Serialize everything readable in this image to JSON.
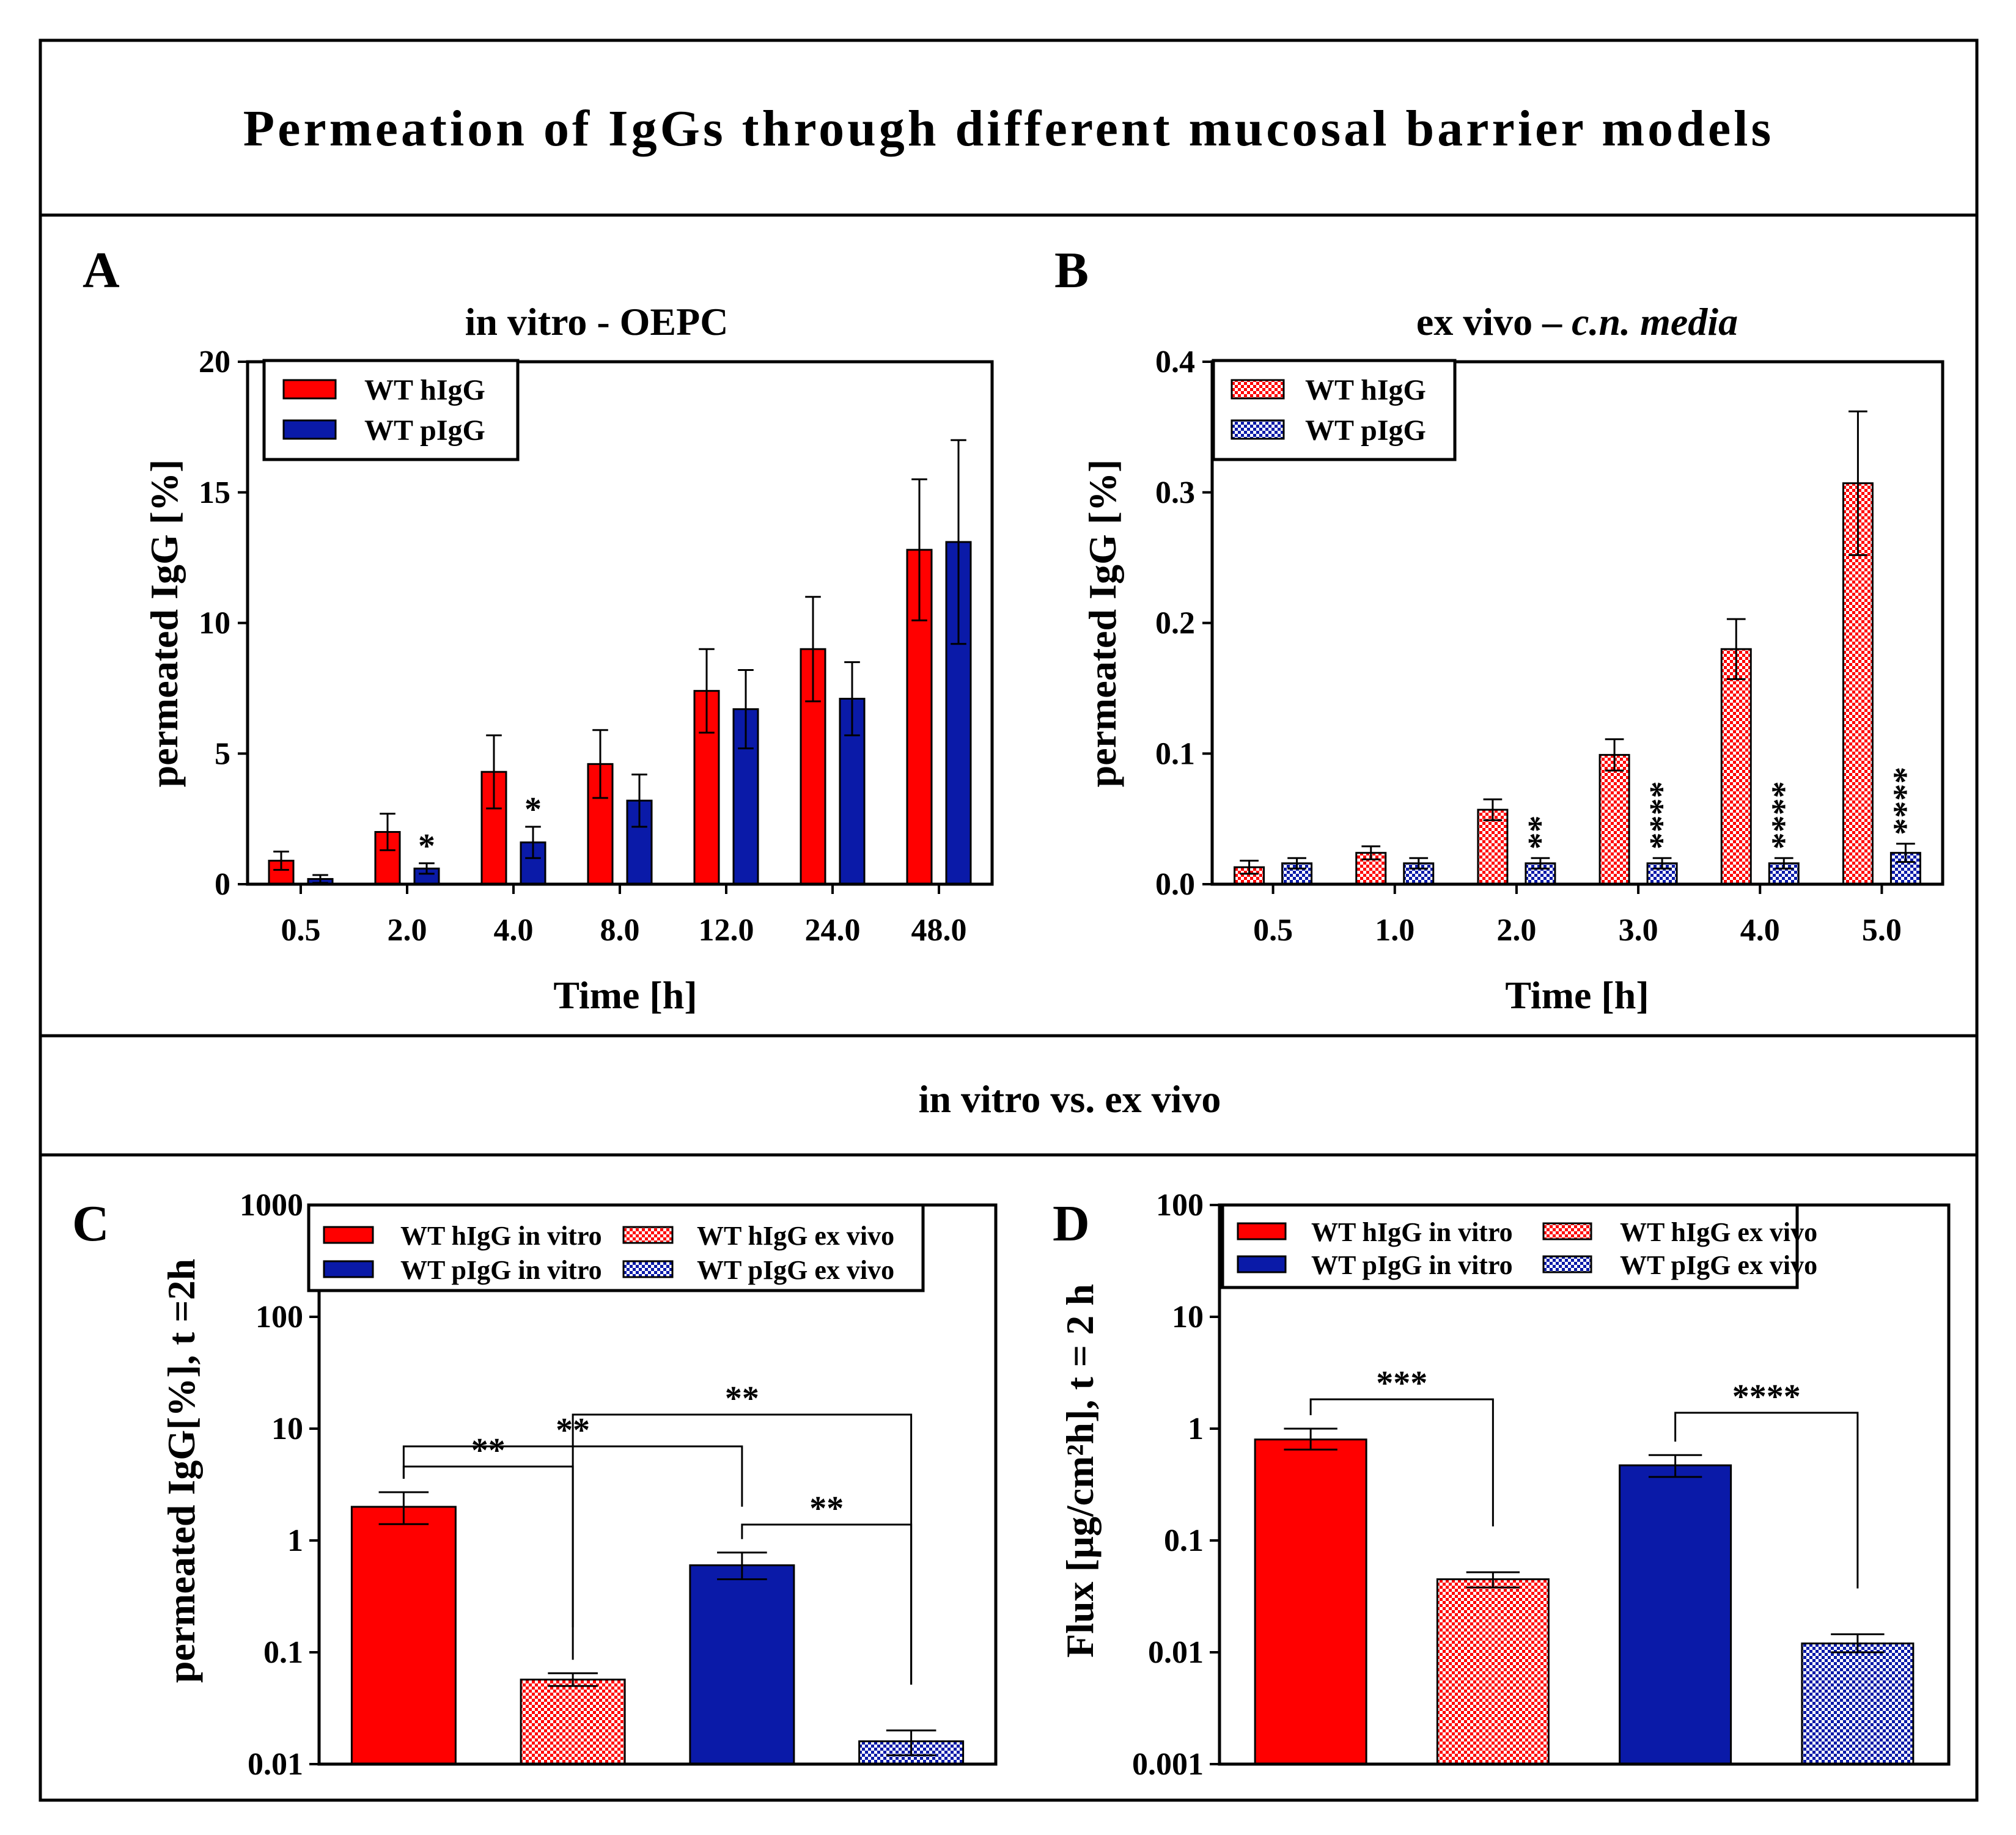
{
  "figure_title": "Permeation of IgGs through different mucosal barrier models",
  "section_title": "in vitro vs. ex vivo",
  "colors": {
    "red": "#ff0000",
    "blue": "#0a1aa8",
    "black": "#000000"
  },
  "chart_data": [
    {
      "panel": "A",
      "type": "bar",
      "title": "in vitro - OEPC",
      "xlabel": "Time [h]",
      "ylabel": "permeated IgG [%]",
      "ylim": [
        0,
        20
      ],
      "yticks": [
        "0",
        "5",
        "10",
        "15",
        "20"
      ],
      "categories": [
        "0.5",
        "2.0",
        "4.0",
        "8.0",
        "12.0",
        "24.0",
        "48.0"
      ],
      "legend": {
        "position": "top-left",
        "entries": [
          "WT hIgG",
          "WT pIgG"
        ]
      },
      "series": [
        {
          "name": "WT hIgG",
          "pattern": "solid",
          "color": "#ff0000",
          "values": [
            0.9,
            2.0,
            4.3,
            4.6,
            7.4,
            9.0,
            12.8
          ],
          "errors": [
            0.35,
            0.7,
            1.4,
            1.3,
            1.6,
            2.0,
            2.7
          ]
        },
        {
          "name": "WT pIgG",
          "pattern": "solid",
          "color": "#0a1aa8",
          "values": [
            0.2,
            0.6,
            1.6,
            3.2,
            6.7,
            7.1,
            13.1
          ],
          "errors": [
            0.15,
            0.2,
            0.6,
            1.0,
            1.5,
            1.4,
            3.9
          ],
          "significance": [
            "",
            "*",
            "*",
            "",
            "",
            "",
            ""
          ]
        }
      ]
    },
    {
      "panel": "B",
      "type": "bar",
      "title_plain": "ex vivo – ",
      "title_italic": "c.n. media",
      "xlabel": "Time [h]",
      "ylabel": "permeated IgG [%]",
      "ylim": [
        0,
        0.4
      ],
      "yticks": [
        "0.0",
        "0.1",
        "0.2",
        "0.3",
        "0.4"
      ],
      "categories": [
        "0.5",
        "1.0",
        "2.0",
        "3.0",
        "4.0",
        "5.0"
      ],
      "legend": {
        "position": "top-left",
        "entries": [
          "WT hIgG",
          "WT pIgG"
        ]
      },
      "series": [
        {
          "name": "WT hIgG",
          "pattern": "checkered",
          "color": "#ff0000",
          "values": [
            0.013,
            0.024,
            0.057,
            0.099,
            0.18,
            0.307
          ],
          "errors": [
            0.005,
            0.005,
            0.008,
            0.012,
            0.023,
            0.055
          ]
        },
        {
          "name": "WT pIgG",
          "pattern": "checkered",
          "color": "#0a1aa8",
          "values": [
            0.016,
            0.016,
            0.016,
            0.016,
            0.016,
            0.024
          ],
          "errors": [
            0.004,
            0.004,
            0.004,
            0.004,
            0.004,
            0.007
          ],
          "significance": [
            "",
            "",
            "**",
            "****",
            "****",
            "****"
          ]
        }
      ]
    },
    {
      "panel": "C",
      "type": "bar",
      "scale": "log",
      "ylabel": "permeated IgG[%], t =2h",
      "ylim": [
        0.01,
        1000
      ],
      "yticks": [
        "0.01",
        "0.1",
        "1",
        "10",
        "100",
        "1000"
      ],
      "legend": {
        "position": "top",
        "entries": [
          "WT hIgG in vitro",
          "WT hIgG ex vivo",
          "WT pIgG in vitro",
          "WT pIgG ex vivo"
        ]
      },
      "bars": [
        {
          "name": "WT hIgG in vitro",
          "pattern": "solid",
          "color": "#ff0000",
          "value": 2.0,
          "err_low": 1.4,
          "err_high": 2.7
        },
        {
          "name": "WT hIgG ex vivo",
          "pattern": "checkered",
          "color": "#ff0000",
          "value": 0.057,
          "err_low": 0.05,
          "err_high": 0.065
        },
        {
          "name": "WT pIgG in vitro",
          "pattern": "solid",
          "color": "#0a1aa8",
          "value": 0.6,
          "err_low": 0.45,
          "err_high": 0.78
        },
        {
          "name": "WT pIgG ex vivo",
          "pattern": "checkered",
          "color": "#0a1aa8",
          "value": 0.016,
          "err_low": 0.012,
          "err_high": 0.02
        }
      ],
      "comparisons": [
        {
          "from": 0,
          "to": 1,
          "label": "**"
        },
        {
          "from": 0,
          "to": 2,
          "label": "**"
        },
        {
          "from": 1,
          "to": 3,
          "label": "**"
        },
        {
          "from": 2,
          "to": 3,
          "label": "**"
        }
      ]
    },
    {
      "panel": "D",
      "type": "bar",
      "scale": "log",
      "ylabel": "Flux [µg/cm²h], t = 2 h",
      "ylim": [
        0.001,
        100
      ],
      "yticks": [
        "0.001",
        "0.01",
        "0.1",
        "1",
        "10",
        "100"
      ],
      "legend": {
        "position": "top",
        "entries": [
          "WT hIgG in vitro",
          "WT hIgG ex vivo",
          "WT pIgG in vitro",
          "WT pIgG ex vivo"
        ]
      },
      "bars": [
        {
          "name": "WT hIgG in vitro",
          "pattern": "solid",
          "color": "#ff0000",
          "value": 0.8,
          "err_low": 0.65,
          "err_high": 1.0
        },
        {
          "name": "WT hIgG ex vivo",
          "pattern": "checkered",
          "color": "#ff0000",
          "value": 0.045,
          "err_low": 0.038,
          "err_high": 0.052
        },
        {
          "name": "WT pIgG in vitro",
          "pattern": "solid",
          "color": "#0a1aa8",
          "value": 0.47,
          "err_low": 0.37,
          "err_high": 0.58
        },
        {
          "name": "WT pIgG ex vivo",
          "pattern": "checkered",
          "color": "#0a1aa8",
          "value": 0.012,
          "err_low": 0.01,
          "err_high": 0.0145
        }
      ],
      "comparisons": [
        {
          "from": 0,
          "to": 1,
          "label": "***"
        },
        {
          "from": 2,
          "to": 3,
          "label": "****"
        }
      ]
    }
  ]
}
